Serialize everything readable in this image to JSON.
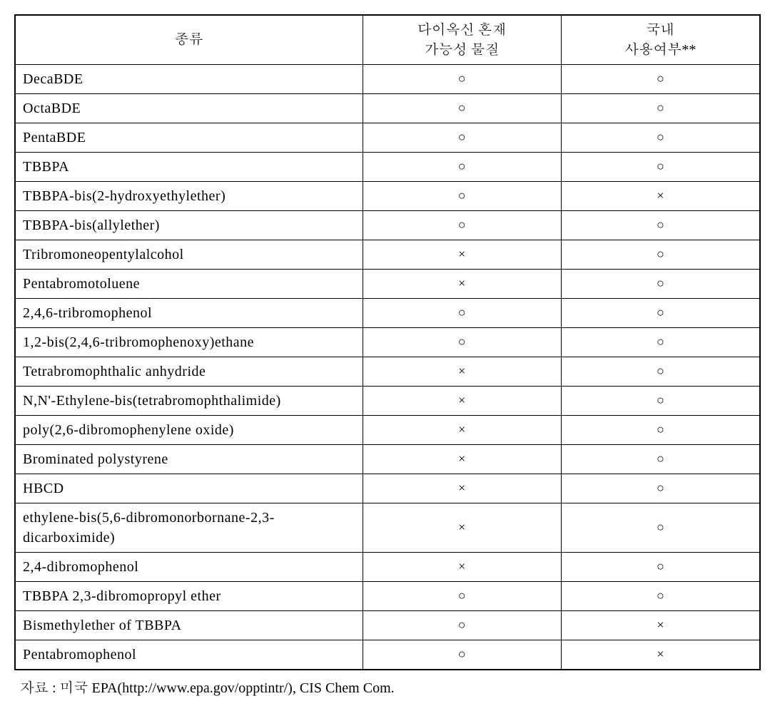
{
  "table": {
    "headers": {
      "type": "종류",
      "dioxin_line1": "다이옥신 혼재",
      "dioxin_line2": "가능성 물질",
      "domestic_line1": "국내",
      "domestic_line2": "사용여부**"
    },
    "marks": {
      "circle": "○",
      "cross": "×"
    },
    "rows": [
      {
        "type": "DecaBDE",
        "dioxin": "○",
        "domestic": "○"
      },
      {
        "type": "OctaBDE",
        "dioxin": "○",
        "domestic": "○"
      },
      {
        "type": "PentaBDE",
        "dioxin": "○",
        "domestic": "○"
      },
      {
        "type": "TBBPA",
        "dioxin": "○",
        "domestic": "○"
      },
      {
        "type": "TBBPA-bis(2-hydroxyethylether)",
        "dioxin": "○",
        "domestic": "×"
      },
      {
        "type": "TBBPA-bis(allylether)",
        "dioxin": "○",
        "domestic": "○"
      },
      {
        "type": "Tribromoneopentylalcohol",
        "dioxin": "×",
        "domestic": "○"
      },
      {
        "type": "Pentabromotoluene",
        "dioxin": "×",
        "domestic": "○"
      },
      {
        "type": "2,4,6-tribromophenol",
        "dioxin": "○",
        "domestic": "○"
      },
      {
        "type": "1,2-bis(2,4,6-tribromophenoxy)ethane",
        "dioxin": "○",
        "domestic": "○"
      },
      {
        "type": "Tetrabromophthalic anhydride",
        "dioxin": "×",
        "domestic": "○"
      },
      {
        "type": "N,N'-Ethylene-bis(tetrabromophthalimide)",
        "dioxin": "×",
        "domestic": "○"
      },
      {
        "type": "poly(2,6-dibromophenylene oxide)",
        "dioxin": "×",
        "domestic": "○"
      },
      {
        "type": "Brominated polystyrene",
        "dioxin": "×",
        "domestic": "○"
      },
      {
        "type": "HBCD",
        "dioxin": "×",
        "domestic": "○"
      },
      {
        "type": "ethylene-bis(5,6-dibromonorbornane-2,3-dicarboximide)",
        "dioxin": "×",
        "domestic": "○"
      },
      {
        "type": "2,4-dibromophenol",
        "dioxin": "×",
        "domestic": "○"
      },
      {
        "type": "TBBPA 2,3-dibromopropyl ether",
        "dioxin": "○",
        "domestic": "○"
      },
      {
        "type": "Bismethylether of TBBPA",
        "dioxin": "○",
        "domestic": "×"
      },
      {
        "type": "Pentabromophenol",
        "dioxin": "○",
        "domestic": "×"
      }
    ]
  },
  "footnote": "자료 : 미국 EPA(http://www.epa.gov/opptintr/), CIS Chem Com."
}
